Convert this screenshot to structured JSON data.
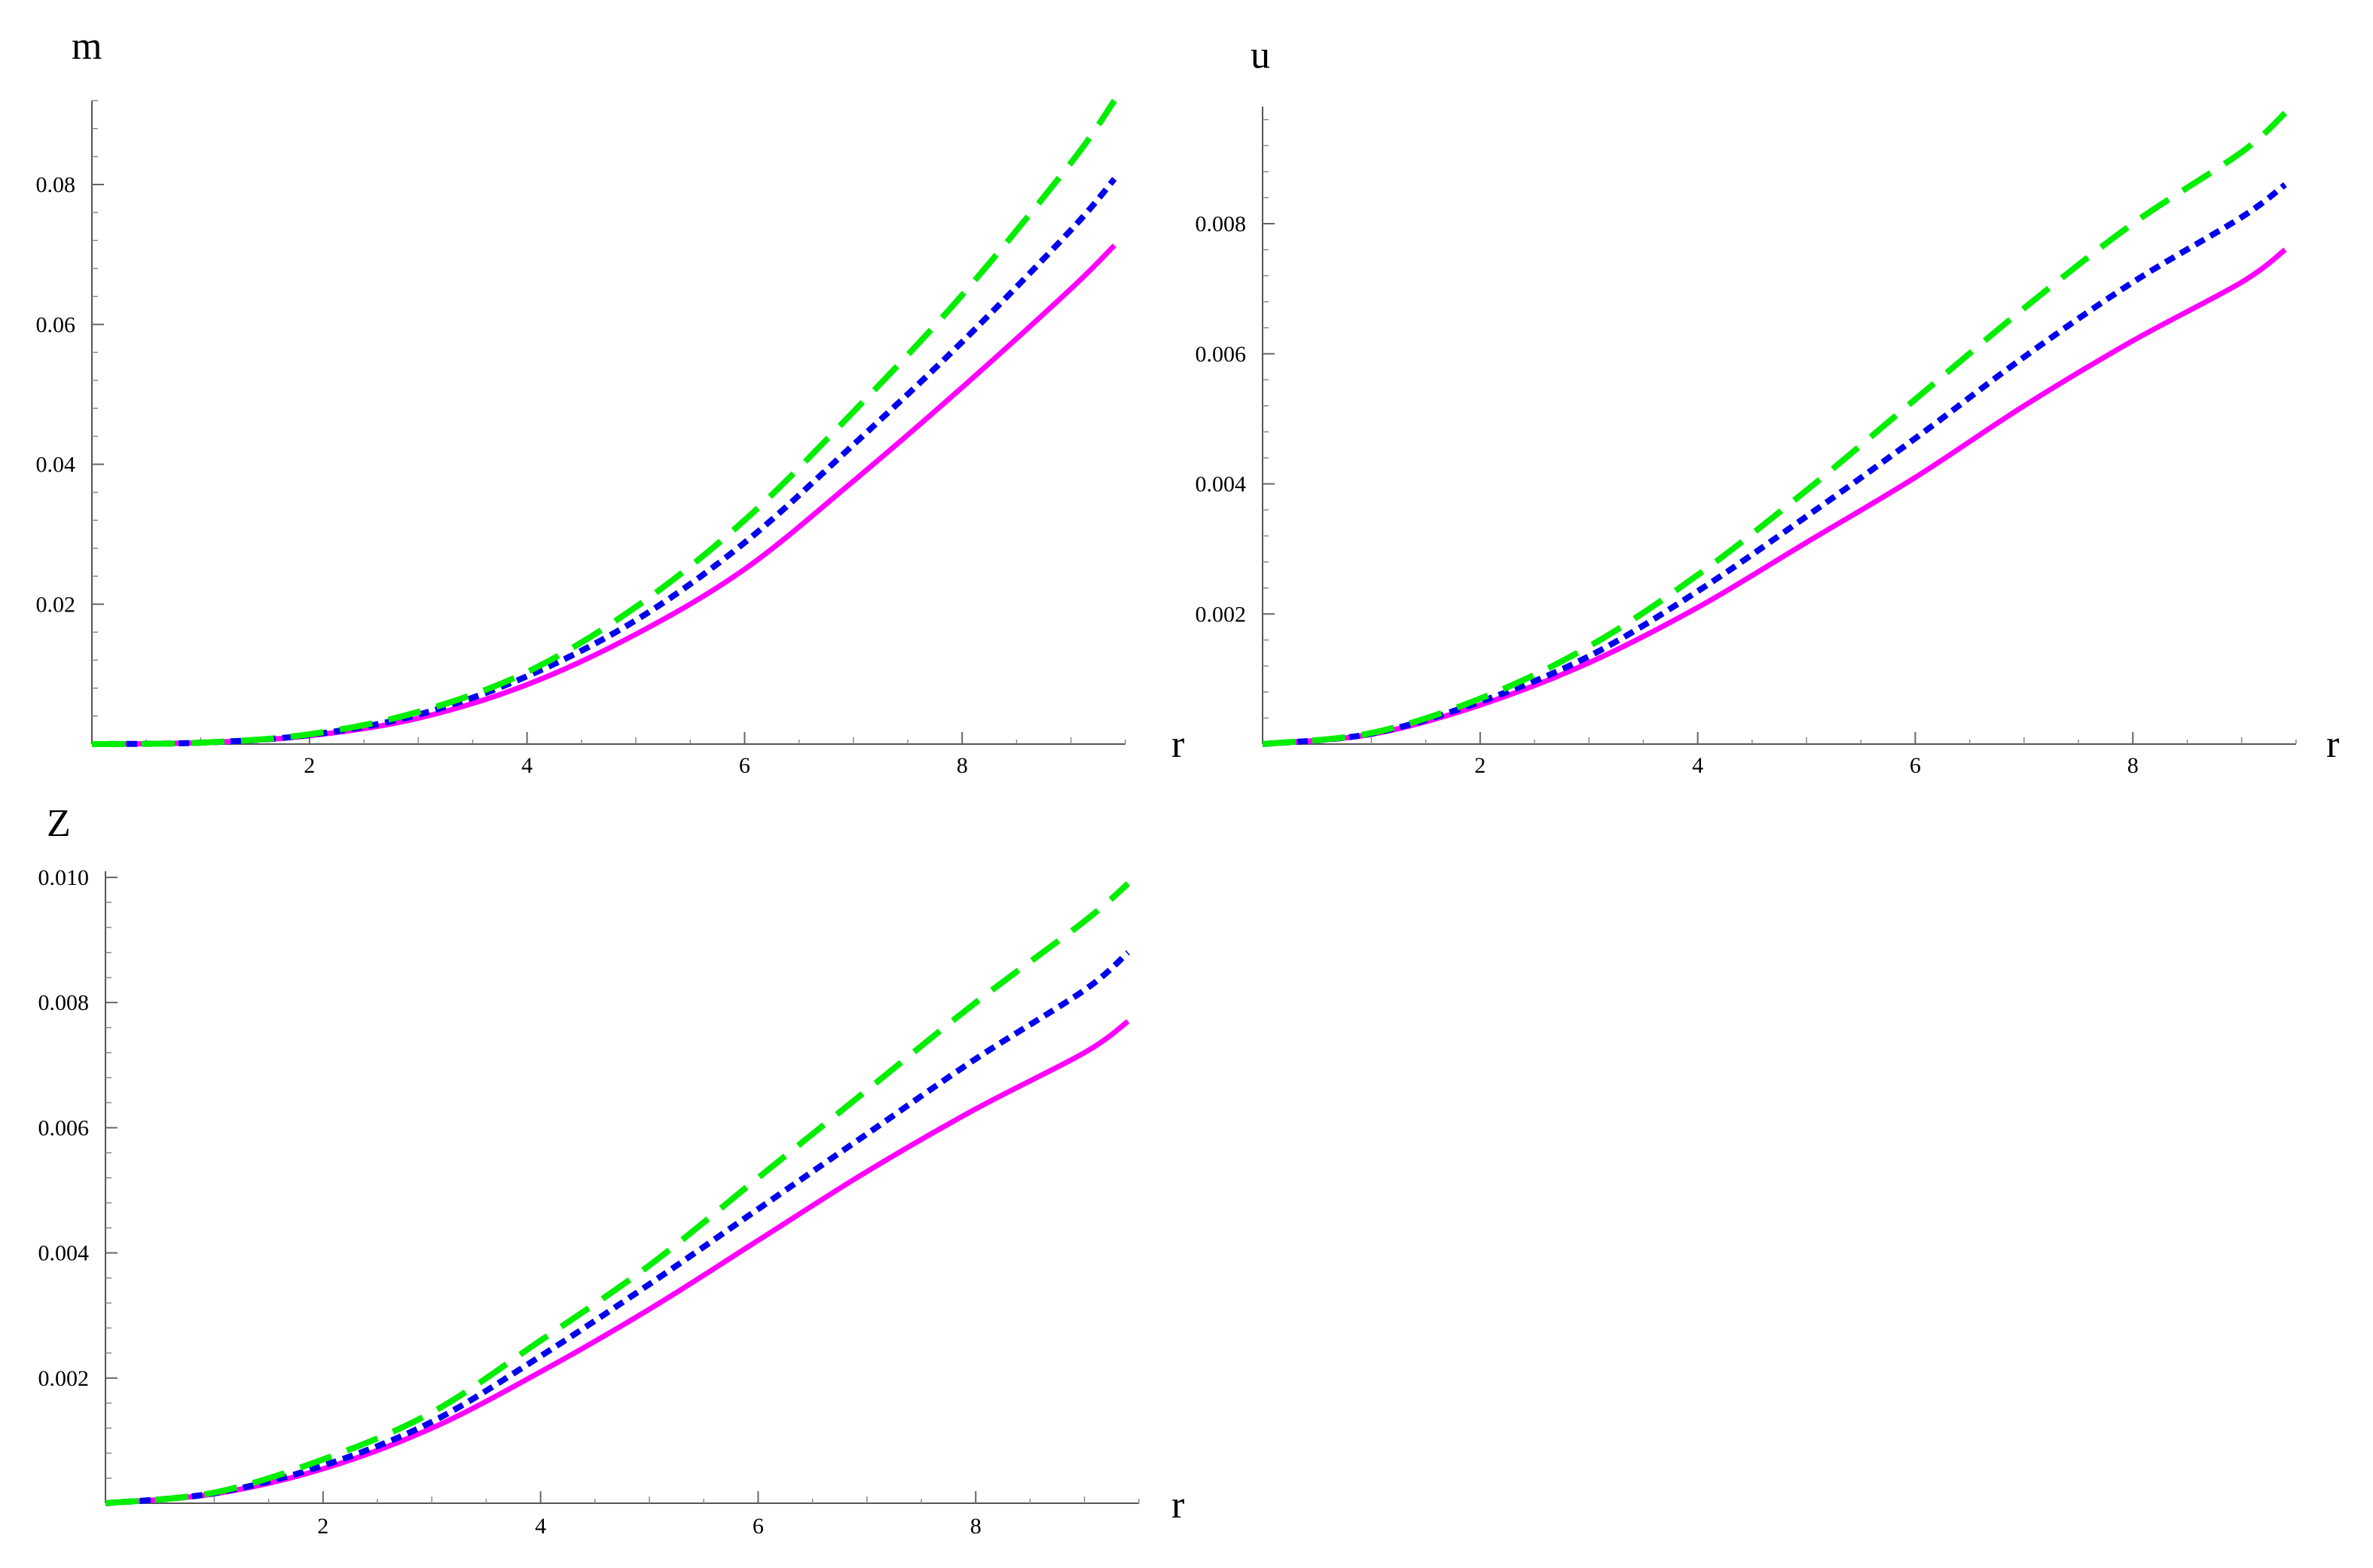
{
  "colors": {
    "magenta": "#ff00ff",
    "blue": "#0000ee",
    "green": "#00ee00"
  },
  "chart_data": [
    {
      "type": "line",
      "xlabel": "r",
      "ylabel": "m",
      "xlim": [
        0,
        9.5
      ],
      "ylim": [
        0,
        0.092
      ],
      "x_ticks": [
        2,
        4,
        6,
        8
      ],
      "x_tick_labels": [
        "2",
        "4",
        "6",
        "8"
      ],
      "y_ticks": [
        0.02,
        0.04,
        0.06,
        0.08
      ],
      "y_tick_labels": [
        "0.02",
        "0.04",
        "0.06",
        "0.08"
      ],
      "grid": false,
      "x": [
        0,
        1,
        2,
        3,
        4,
        5,
        6,
        7,
        8,
        9,
        9.4
      ],
      "series": [
        {
          "style": "solid",
          "color": "#ff00ff",
          "values": [
            0,
            0.0002,
            0.0012,
            0.0037,
            0.0085,
            0.0157,
            0.025,
            0.0376,
            0.051,
            0.0651,
            0.0713
          ]
        },
        {
          "style": "dotted",
          "color": "#0000ee",
          "values": [
            0,
            0.0002,
            0.0013,
            0.0042,
            0.0097,
            0.0177,
            0.0288,
            0.0428,
            0.0575,
            0.0735,
            0.0808
          ]
        },
        {
          "style": "dashed",
          "color": "#00ee00",
          "values": [
            0,
            0.0002,
            0.0014,
            0.0046,
            0.0103,
            0.0196,
            0.032,
            0.0475,
            0.0642,
            0.0831,
            0.092
          ]
        }
      ]
    },
    {
      "type": "line",
      "xlabel": "r",
      "ylabel": "u",
      "xlim": [
        0,
        9.5
      ],
      "ylim": [
        0,
        0.0098
      ],
      "x_ticks": [
        2,
        4,
        6,
        8
      ],
      "x_tick_labels": [
        "2",
        "4",
        "6",
        "8"
      ],
      "y_ticks": [
        0.002,
        0.004,
        0.006,
        0.008
      ],
      "y_tick_labels": [
        "0.002",
        "0.004",
        "0.006",
        "0.008"
      ],
      "grid": false,
      "x": [
        0,
        1,
        2,
        3,
        4,
        5,
        6,
        7,
        8,
        9,
        9.4
      ],
      "series": [
        {
          "style": "solid",
          "color": "#ff00ff",
          "values": [
            0,
            0.00015,
            0.0006,
            0.00125,
            0.0021,
            0.0031,
            0.0041,
            0.0052,
            0.0062,
            0.0071,
            0.0076
          ]
        },
        {
          "style": "dotted",
          "color": "#0000ee",
          "values": [
            0,
            0.00016,
            0.00065,
            0.00135,
            0.00235,
            0.0035,
            0.0047,
            0.00595,
            0.0071,
            0.0081,
            0.0086
          ]
        },
        {
          "style": "dashed",
          "color": "#00ee00",
          "values": [
            0,
            0.00017,
            0.0007,
            0.0015,
            0.0026,
            0.0039,
            0.0053,
            0.0067,
            0.008,
            0.0091,
            0.0097
          ]
        }
      ]
    },
    {
      "type": "line",
      "xlabel": "r",
      "ylabel": "Z",
      "xlim": [
        0,
        9.5
      ],
      "ylim": [
        0,
        0.0101
      ],
      "x_ticks": [
        2,
        4,
        6,
        8
      ],
      "x_tick_labels": [
        "2",
        "4",
        "6",
        "8"
      ],
      "y_ticks": [
        0.002,
        0.004,
        0.006,
        0.008,
        0.01
      ],
      "y_tick_labels": [
        "0.002",
        "0.004",
        "0.006",
        "0.008",
        "0.010"
      ],
      "grid": false,
      "x": [
        0,
        1,
        2,
        3,
        4,
        5,
        6,
        7,
        8,
        9,
        9.4
      ],
      "series": [
        {
          "style": "solid",
          "color": "#ff00ff",
          "values": [
            0,
            0.00015,
            0.00055,
            0.0012,
            0.0021,
            0.0031,
            0.0042,
            0.0053,
            0.0063,
            0.0072,
            0.0077
          ]
        },
        {
          "style": "dotted",
          "color": "#0000ee",
          "values": [
            0,
            0.00016,
            0.0006,
            0.0013,
            0.00235,
            0.0035,
            0.0047,
            0.0059,
            0.0071,
            0.0082,
            0.0088
          ]
        },
        {
          "style": "dashed",
          "color": "#00ee00",
          "values": [
            0,
            0.00017,
            0.0007,
            0.00145,
            0.0026,
            0.0038,
            0.0052,
            0.0066,
            0.008,
            0.0093,
            0.0099
          ]
        }
      ]
    }
  ]
}
